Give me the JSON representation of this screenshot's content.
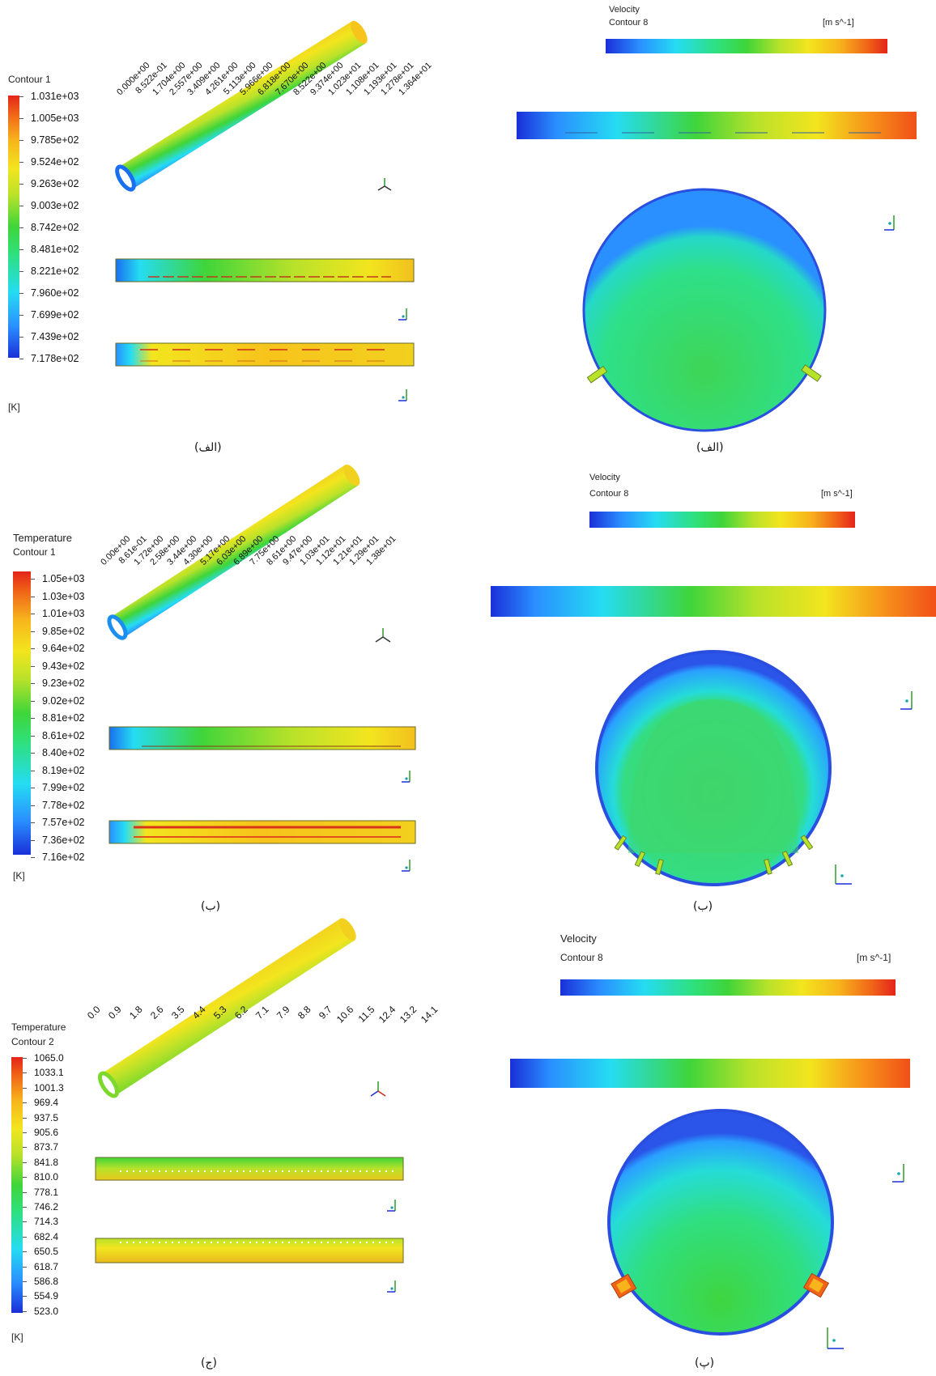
{
  "colors": {
    "rainbow": [
      "#1a2fd8",
      "#2a8fff",
      "#25dcf2",
      "#2fe07a",
      "#3fd53a",
      "#b9e22a",
      "#f2e51e",
      "#f7b41c",
      "#f06418",
      "#e4241a"
    ]
  },
  "panel_a_temp": {
    "title": "Contour 1",
    "ticks": [
      "1.031e+03",
      "1.005e+03",
      "9.785e+02",
      "9.524e+02",
      "9.263e+02",
      "9.003e+02",
      "8.742e+02",
      "8.481e+02",
      "8.221e+02",
      "7.960e+02",
      "7.699e+02",
      "7.439e+02",
      "7.178e+02"
    ],
    "unit": "[K]",
    "caption": "(الف)"
  },
  "panel_a_vel": {
    "title1": "Velocity",
    "title2": "Contour 8",
    "unit": "[m s^-1]",
    "ticks": [
      "0.000e+00",
      "8.522e-01",
      "1.704e+00",
      "2.557e+00",
      "3.409e+00",
      "4.261e+00",
      "5.113e+00",
      "5.966e+00",
      "6.818e+00",
      "7.670e+00",
      "8.522e+00",
      "9.374e+00",
      "1.023e+01",
      "1.108e+01",
      "1.193e+01",
      "1.278e+01",
      "1.364e+01"
    ],
    "caption": "(الف)"
  },
  "panel_b_temp": {
    "title1": "Temperature",
    "title2": "Contour 1",
    "ticks": [
      "1.05e+03",
      "1.03e+03",
      "1.01e+03",
      "9.85e+02",
      "9.64e+02",
      "9.43e+02",
      "9.23e+02",
      "9.02e+02",
      "8.81e+02",
      "8.61e+02",
      "8.40e+02",
      "8.19e+02",
      "7.99e+02",
      "7.78e+02",
      "7.57e+02",
      "7.36e+02",
      "7.16e+02"
    ],
    "unit": "[K]",
    "caption": "(ب)"
  },
  "panel_b_vel": {
    "title1": "Velocity",
    "title2": "Contour 8",
    "unit": "[m s^-1]",
    "ticks": [
      "0.00e+00",
      "8.61e-01",
      "1.72e+00",
      "2.58e+00",
      "3.44e+00",
      "4.30e+00",
      "5.17e+00",
      "6.03e+00",
      "6.89e+00",
      "7.75e+00",
      "8.61e+00",
      "9.47e+00",
      "1.03e+01",
      "1.12e+01",
      "1.21e+01",
      "1.29e+01",
      "1.38e+01"
    ],
    "caption": "(ب)"
  },
  "panel_c_temp": {
    "title1": "Temperature",
    "title2": "Contour 2",
    "ticks": [
      "1065.0",
      "1033.1",
      "1001.3",
      "969.4",
      "937.5",
      "905.6",
      "873.7",
      "841.8",
      "810.0",
      "778.1",
      "746.2",
      "714.3",
      "682.4",
      "650.5",
      "618.7",
      "586.8",
      "554.9",
      "523.0"
    ],
    "unit": "[K]",
    "caption": "(ج)"
  },
  "panel_c_vel": {
    "title1": "Velocity",
    "title2": "Contour 8",
    "unit": "[m s^-1]",
    "ticks": [
      "0.0",
      "0.9",
      "1.8",
      "2.6",
      "3.5",
      "4.4",
      "5.3",
      "6.2",
      "7.1",
      "7.9",
      "8.8",
      "9.7",
      "10.6",
      "11.5",
      "12.4",
      "13.2",
      "14.1"
    ],
    "caption": "(پ)"
  },
  "axes": {
    "x": "x",
    "y": "y",
    "z": "z"
  }
}
